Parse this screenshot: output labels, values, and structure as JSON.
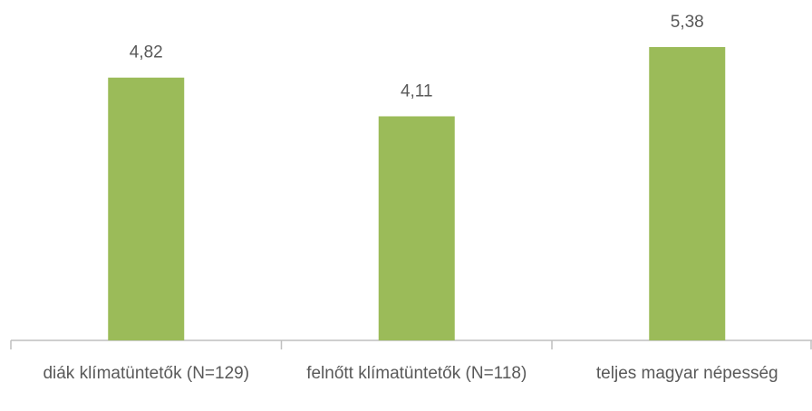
{
  "chart_data": {
    "type": "bar",
    "categories": [
      "diák klímatüntetők (N=129)",
      "felnőtt klímatüntetők (N=118)",
      "teljes magyar népesség"
    ],
    "values": [
      4.82,
      4.11,
      5.38
    ],
    "value_labels": [
      "4,82",
      "4,11",
      "5,38"
    ],
    "color": "#9bbb59"
  }
}
